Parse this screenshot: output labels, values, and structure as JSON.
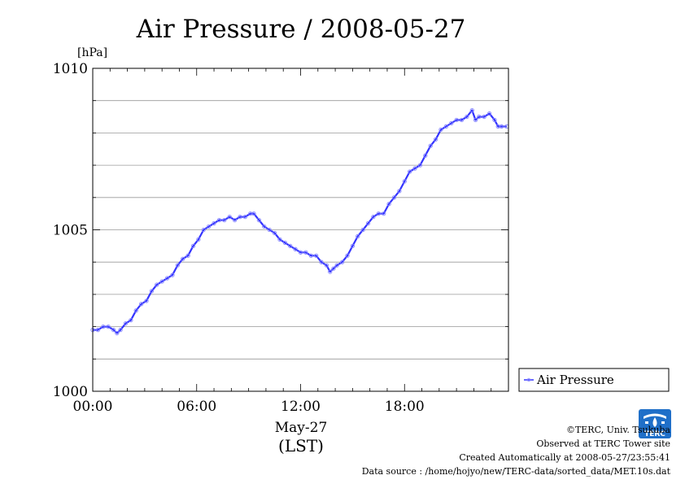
{
  "chart_data": {
    "type": "line",
    "title": "Air Pressure / 2008-05-27",
    "ylabel": "[hPa]",
    "xlabel": "May-27",
    "xlabel2": "(LST)",
    "xlim": [
      0,
      24
    ],
    "ylim": [
      1000,
      1010
    ],
    "x_ticks": [
      {
        "value": 0,
        "label": "00:00"
      },
      {
        "value": 6,
        "label": "06:00"
      },
      {
        "value": 12,
        "label": "12:00"
      },
      {
        "value": 18,
        "label": "18:00"
      }
    ],
    "y_ticks": [
      {
        "value": 1000,
        "label": "1000"
      },
      {
        "value": 1005,
        "label": "1005"
      },
      {
        "value": 1010,
        "label": "1010"
      }
    ],
    "grid": true,
    "legend_position": "right",
    "series": [
      {
        "name": "Air Pressure",
        "color": "#3333ff",
        "x": [
          0.0,
          0.3,
          0.6,
          0.9,
          1.2,
          1.4,
          1.6,
          1.9,
          2.2,
          2.5,
          2.8,
          3.1,
          3.4,
          3.7,
          4.0,
          4.3,
          4.6,
          4.9,
          5.2,
          5.5,
          5.8,
          6.1,
          6.4,
          6.7,
          7.0,
          7.3,
          7.6,
          7.9,
          8.2,
          8.5,
          8.8,
          9.1,
          9.3,
          9.6,
          9.9,
          10.2,
          10.5,
          10.8,
          11.1,
          11.4,
          11.7,
          12.0,
          12.3,
          12.6,
          12.9,
          13.2,
          13.5,
          13.7,
          13.9,
          14.1,
          14.4,
          14.7,
          15.0,
          15.3,
          15.6,
          15.9,
          16.2,
          16.5,
          16.8,
          17.1,
          17.4,
          17.7,
          18.0,
          18.3,
          18.6,
          18.9,
          19.2,
          19.5,
          19.8,
          20.1,
          20.4,
          20.7,
          21.0,
          21.3,
          21.6,
          21.9,
          22.1,
          22.3,
          22.6,
          22.9,
          23.2,
          23.4,
          23.6,
          23.9
        ],
        "values": [
          1001.9,
          1001.9,
          1002.0,
          1002.0,
          1001.9,
          1001.8,
          1001.9,
          1002.1,
          1002.2,
          1002.5,
          1002.7,
          1002.8,
          1003.1,
          1003.3,
          1003.4,
          1003.5,
          1003.6,
          1003.9,
          1004.1,
          1004.2,
          1004.5,
          1004.7,
          1005.0,
          1005.1,
          1005.2,
          1005.3,
          1005.3,
          1005.4,
          1005.3,
          1005.4,
          1005.4,
          1005.5,
          1005.5,
          1005.3,
          1005.1,
          1005.0,
          1004.9,
          1004.7,
          1004.6,
          1004.5,
          1004.4,
          1004.3,
          1004.3,
          1004.2,
          1004.2,
          1004.0,
          1003.9,
          1003.7,
          1003.8,
          1003.9,
          1004.0,
          1004.2,
          1004.5,
          1004.8,
          1005.0,
          1005.2,
          1005.4,
          1005.5,
          1005.5,
          1005.8,
          1006.0,
          1006.2,
          1006.5,
          1006.8,
          1006.9,
          1007.0,
          1007.3,
          1007.6,
          1007.8,
          1008.1,
          1008.2,
          1008.3,
          1008.4,
          1008.4,
          1008.5,
          1008.7,
          1008.4,
          1008.5,
          1008.5,
          1008.6,
          1008.4,
          1008.2,
          1008.2,
          1008.2
        ]
      }
    ]
  },
  "footer": {
    "copyright": "©TERC, Univ. Tsukuba",
    "site": "Observed at TERC Tower site",
    "created": "Created Automatically at 2008-05-27/23:55:41",
    "source": "Data source : /home/hojyo/new/TERC-data/sorted_data/MET.10s.dat"
  },
  "logo": {
    "text": "TERC",
    "icon": "terc-logo-icon",
    "color": "#1f6fc8"
  }
}
